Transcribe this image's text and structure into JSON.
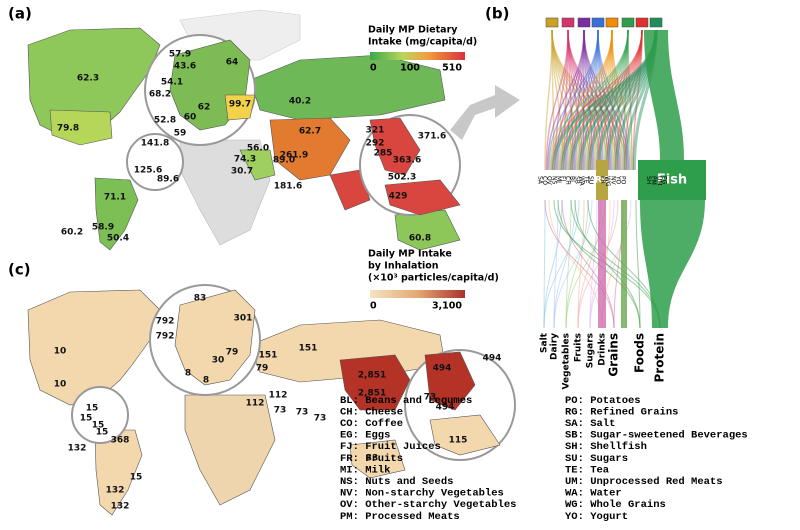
{
  "panel_a": {
    "label": "(a)",
    "legend_title": [
      "Daily MP Dietary",
      "Intake (mg/capita/d)"
    ],
    "legend_ticks": [
      "0",
      "100",
      "510"
    ],
    "map_labels": [
      "62.3",
      "79.8",
      "141.8",
      "125.6",
      "89.6",
      "60.2",
      "71.1",
      "58.9",
      "50.4",
      "57.9",
      "43.6",
      "64",
      "54.1",
      "68.2",
      "62",
      "52.8",
      "60",
      "59",
      "99.7",
      "40.2",
      "62.7",
      "261.9",
      "74.3",
      "56.0",
      "30.7",
      "89.0",
      "181.6",
      "321",
      "292",
      "285",
      "363.6",
      "371.6",
      "502.3",
      "429",
      "60.8"
    ]
  },
  "panel_b": {
    "label": "(b)",
    "abbr_nodes": [
      "SA",
      "CO",
      "OV",
      "NS",
      "MI",
      "FJ",
      "CH",
      "BL",
      "SB",
      "WA",
      "TE",
      "SU",
      "FR",
      "WG",
      "NV",
      "YO",
      "PO",
      "SH",
      "PM",
      "UM",
      "EG"
    ],
    "node_rg": "RG",
    "node_fish": "Fish",
    "bottom_labels": [
      "Salt",
      "Dairy",
      "Vegetables",
      "Fruits",
      "Sugars",
      "Drinks",
      "Grains",
      "Foods",
      "Protein"
    ]
  },
  "panel_c": {
    "label": "(c)",
    "legend_title": [
      "Daily MP Intake",
      "by Inhalation",
      "(×10³ particles/capita/d)"
    ],
    "legend_ticks": [
      "0",
      "3,100"
    ],
    "map_labels": [
      "83",
      "301",
      "792",
      "792",
      "151",
      "10",
      "10",
      "30",
      "79",
      "151",
      "8",
      "8",
      "79",
      "15",
      "15",
      "15",
      "15",
      "112",
      "112",
      "73",
      "73",
      "73",
      "2,851",
      "2,851",
      "494",
      "494",
      "494",
      "73",
      "115",
      "33",
      "132",
      "368",
      "15",
      "132",
      "132"
    ]
  },
  "abbreviations": {
    "left": [
      "BL: Beans and Legumes",
      "CH: Cheese",
      "CO: Coffee",
      "EG: Eggs",
      "FJ: Fruit Juices",
      "FR: Fruits",
      "MI: Milk",
      "NS: Nuts and Seeds",
      "NV: Non-starchy Vegetables",
      "OV: Other-starchy Vegetables",
      "PM: Processed Meats"
    ],
    "right": [
      "PO: Potatoes",
      "RG: Refined Grains",
      "SA: Salt",
      "SB: Sugar-sweetened Beverages",
      "SH: Shellfish",
      "SU: Sugars",
      "TE: Tea",
      "UM: Unprocessed Red Meats",
      "WA: Water",
      "WG: Whole Grains",
      "YO: Yogurt"
    ]
  }
}
